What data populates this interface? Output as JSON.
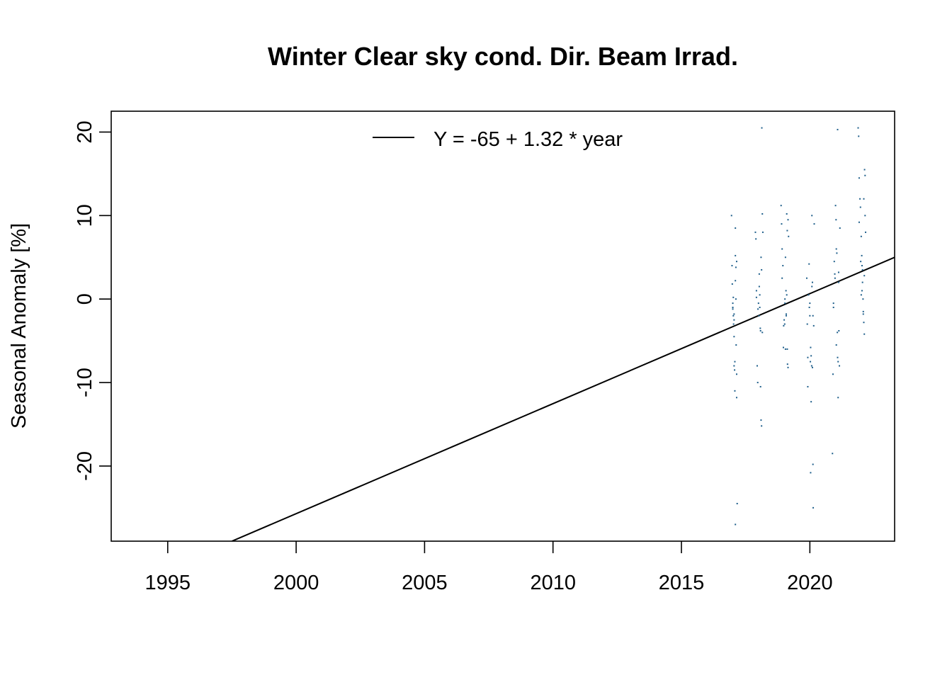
{
  "chart_data": {
    "type": "scatter",
    "title": "Winter Clear sky cond. Dir. Beam Irrad.",
    "xlabel": "",
    "ylabel": "Seasonal Anomaly [%]",
    "xlim": [
      1992.8,
      2023.3
    ],
    "ylim": [
      -29.0,
      22.5
    ],
    "x_ticks": [
      1995,
      2000,
      2005,
      2010,
      2015,
      2020
    ],
    "y_ticks": [
      -20,
      -10,
      0,
      10,
      20
    ],
    "grid": false,
    "legend": {
      "position": "top-center",
      "entries": [
        "Y = -65 + 1.32 * year"
      ]
    },
    "point_color": "#1f5f8b",
    "line_color": "#000000",
    "series": [
      {
        "type": "line",
        "x": [
          1997.5,
          2023.3
        ],
        "y": [
          -29.0,
          5.0
        ]
      },
      {
        "type": "scatter",
        "x": [
          2016.95,
          2016.97,
          2016.98,
          2017.0,
          2017.0,
          2017.02,
          2017.03,
          2017.05,
          2017.05,
          2017.07,
          2017.08,
          2017.1,
          2017.1,
          2017.12,
          2017.13,
          2017.15,
          2017.15,
          2017.17,
          2017.0,
          2017.02,
          2017.05,
          2017.08,
          2017.1,
          2017.12,
          2017.15,
          2017.05,
          2017.1,
          2017.88,
          2017.9,
          2017.92,
          2017.95,
          2017.97,
          2018.0,
          2018.02,
          2018.03,
          2018.05,
          2018.07,
          2018.08,
          2018.1,
          2018.12,
          2018.13,
          2018.15,
          2018.17,
          2017.92,
          2017.98,
          2018.03,
          2018.08,
          2018.1,
          2018.12,
          2018.15,
          2018.05,
          2018.88,
          2018.9,
          2018.92,
          2018.95,
          2018.97,
          2019.0,
          2019.02,
          2019.03,
          2019.05,
          2019.07,
          2019.08,
          2019.1,
          2019.12,
          2019.13,
          2019.15,
          2019.17,
          2018.92,
          2018.98,
          2019.03,
          2019.08,
          2019.1,
          2019.12,
          2019.15,
          2019.05,
          2019.88,
          2019.9,
          2019.92,
          2019.95,
          2019.97,
          2020.0,
          2020.02,
          2020.03,
          2020.05,
          2020.07,
          2020.08,
          2020.1,
          2020.12,
          2020.13,
          2020.15,
          2020.17,
          2019.92,
          2019.98,
          2020.03,
          2020.08,
          2020.1,
          2020.12,
          2020.05,
          2020.0,
          2020.88,
          2020.9,
          2020.92,
          2020.95,
          2020.97,
          2021.0,
          2021.02,
          2021.03,
          2021.05,
          2021.07,
          2021.08,
          2021.1,
          2021.12,
          2021.13,
          2021.15,
          2021.17,
          2020.92,
          2020.98,
          2021.03,
          2021.08,
          2021.1,
          2021.12,
          2021.88,
          2021.9,
          2021.92,
          2021.95,
          2021.97,
          2022.0,
          2022.02,
          2022.03,
          2022.05,
          2022.07,
          2022.08,
          2022.1,
          2022.12,
          2022.13,
          2022.15,
          2022.17,
          2021.92,
          2021.98,
          2022.03,
          2022.08,
          2022.1,
          2022.12,
          2022.15,
          2022.05,
          2022.0
        ],
        "y": [
          10.0,
          4.0,
          1.8,
          -0.5,
          -1.2,
          -2.0,
          -3.0,
          -4.5,
          -8.0,
          -8.5,
          -11.0,
          8.5,
          5.2,
          3.8,
          -5.5,
          -9.0,
          -11.8,
          -24.5,
          -1.0,
          0.2,
          -2.5,
          -7.5,
          -27.0,
          0.0,
          4.5,
          -1.8,
          2.2,
          8.0,
          7.2,
          1.0,
          -8.0,
          -10.0,
          -0.5,
          -2.0,
          3.0,
          0.5,
          -3.5,
          -10.5,
          -14.5,
          -15.2,
          20.5,
          10.2,
          8.0,
          0.2,
          -1.2,
          1.5,
          -3.8,
          5.0,
          3.5,
          -4.0,
          -1.0,
          11.2,
          9.0,
          6.0,
          4.0,
          -5.8,
          -2.5,
          -3.0,
          0.0,
          -6.0,
          1.0,
          -1.8,
          10.2,
          8.2,
          -7.8,
          -8.2,
          7.5,
          2.5,
          -3.2,
          -0.5,
          -2.0,
          0.5,
          -6.0,
          9.5,
          5.0,
          2.5,
          -3.0,
          -7.0,
          0.5,
          4.2,
          -0.5,
          -7.5,
          -20.8,
          -12.3,
          -8.0,
          10.0,
          2.0,
          -19.8,
          -25.0,
          -3.2,
          9.0,
          -10.5,
          -1.0,
          -5.8,
          1.5,
          -8.2,
          -2.0,
          -6.8,
          -2.0,
          -18.5,
          -9.0,
          -1.0,
          4.5,
          3.0,
          11.2,
          9.5,
          6.0,
          5.5,
          -4.0,
          -7.0,
          -11.8,
          2.0,
          -3.8,
          -8.0,
          8.5,
          -0.5,
          2.5,
          -5.5,
          20.3,
          -7.5,
          3.2,
          20.5,
          19.5,
          14.5,
          12.0,
          11.0,
          7.5,
          5.2,
          4.0,
          2.0,
          0.0,
          -1.5,
          -2.8,
          -4.2,
          15.5,
          10.0,
          8.0,
          9.2,
          4.5,
          1.0,
          -1.8,
          12.0,
          2.8,
          14.8,
          3.5,
          0.5
        ]
      }
    ]
  }
}
